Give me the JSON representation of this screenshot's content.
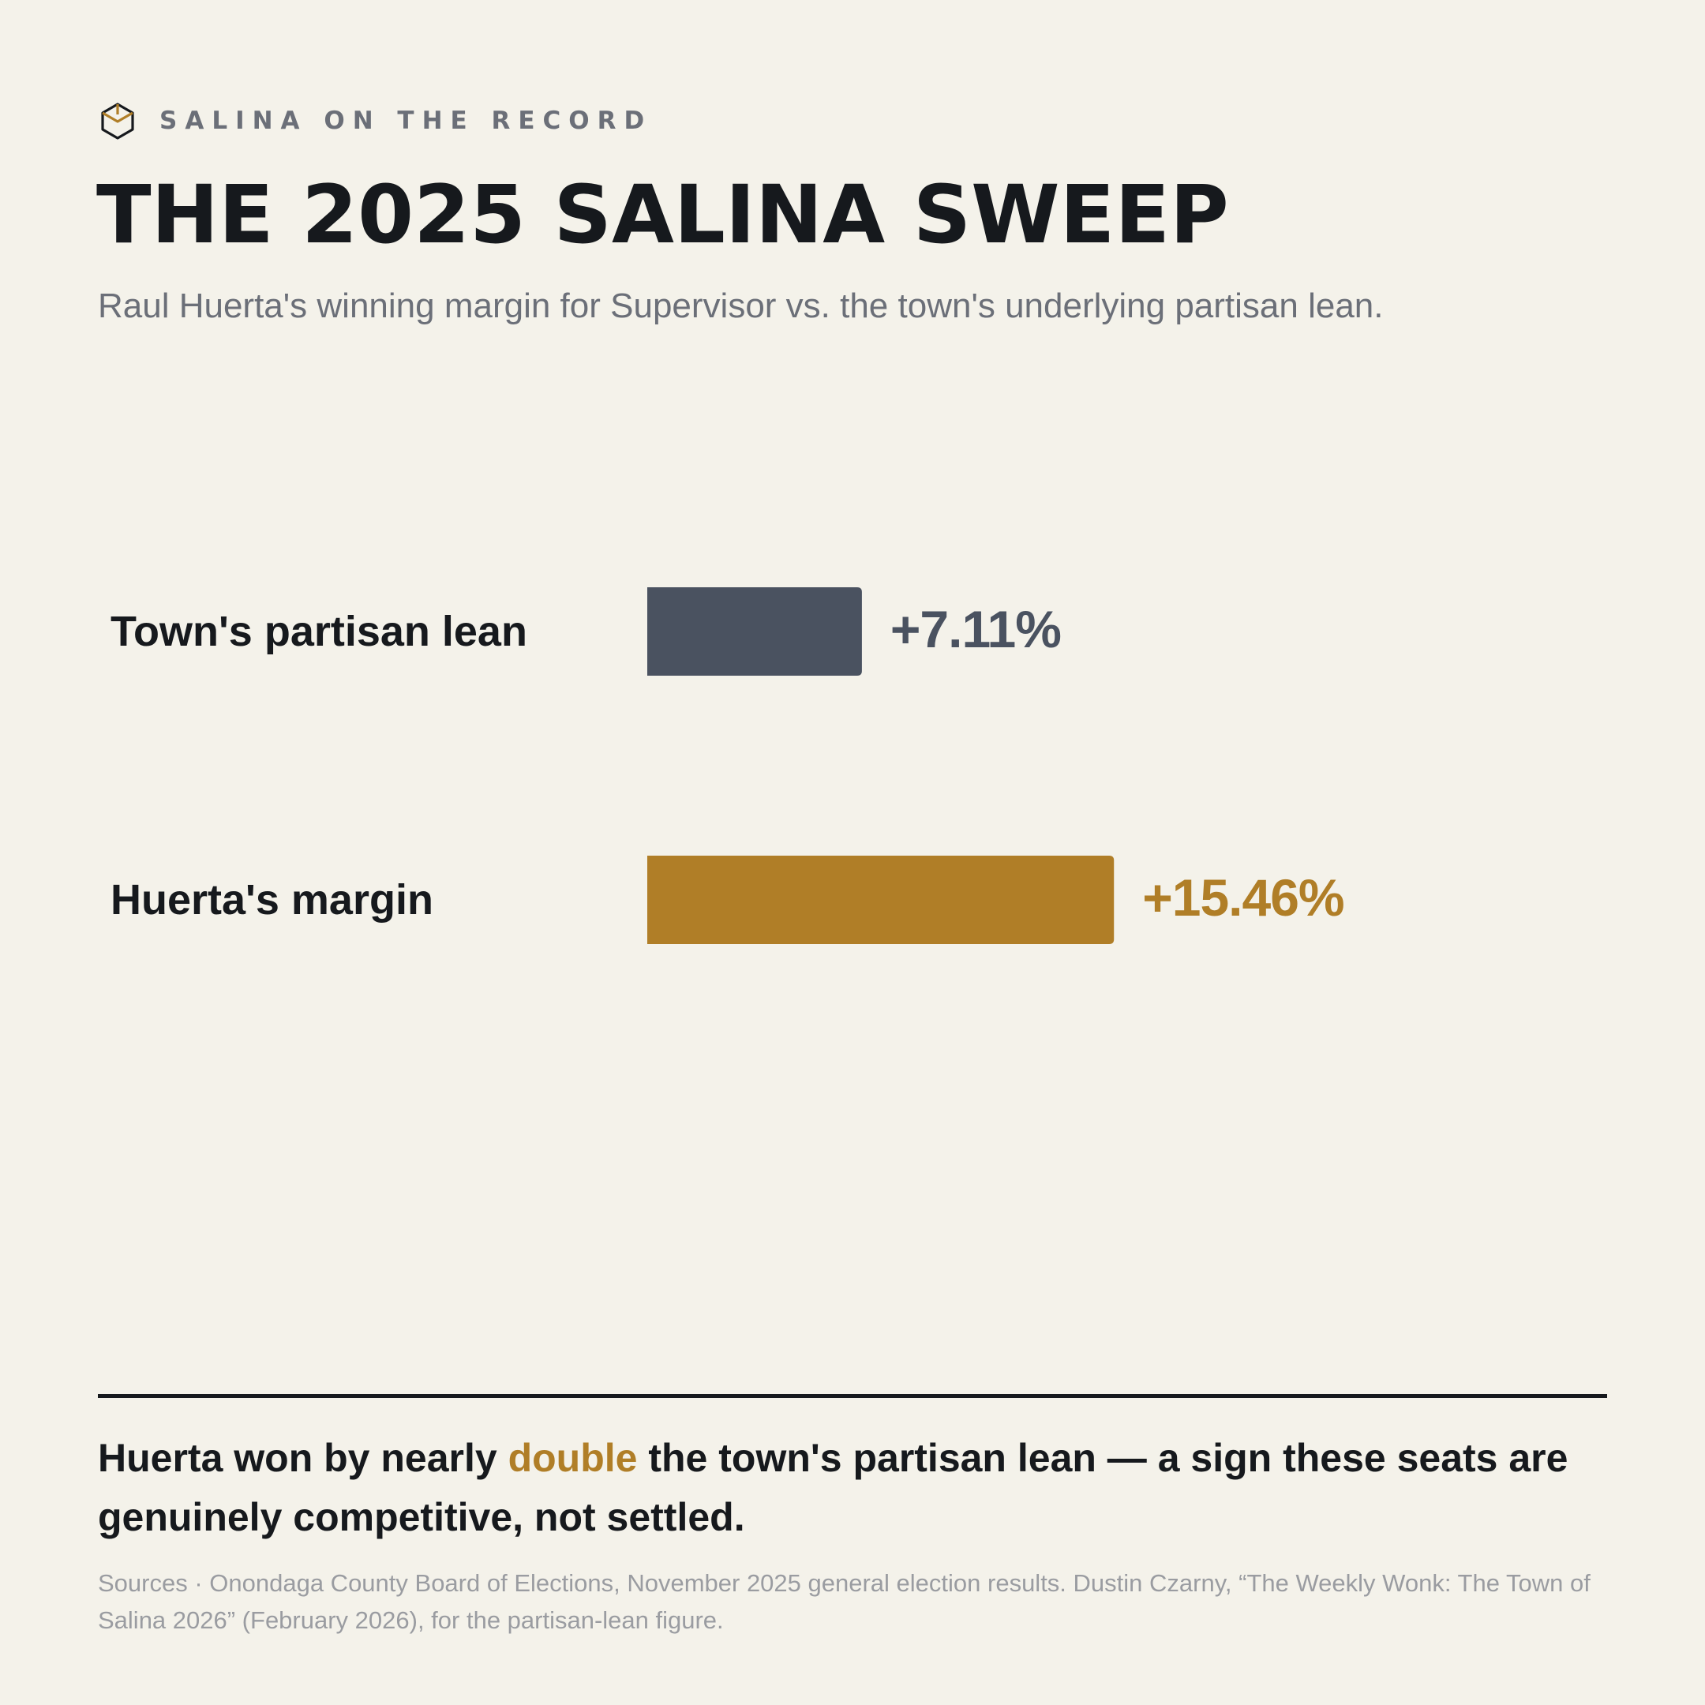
{
  "header": {
    "brand_icon": "ballot-box-icon",
    "brand_name": "SALINA ON THE RECORD",
    "title": "THE 2025 SALINA SWEEP",
    "subtitle": "Raul Huerta's winning margin for Supervisor vs. the town's underlying partisan lean."
  },
  "colors": {
    "background": "#f4f2ea",
    "ink": "#16191d",
    "muted": "#6b6f78",
    "lean_bar": "#4a5260",
    "margin_bar": "#b07e27"
  },
  "chart_data": {
    "type": "bar",
    "orientation": "horizontal",
    "categories": [
      "Town's partisan lean",
      "Huerta's margin"
    ],
    "values": [
      7.11,
      15.46
    ],
    "value_labels": [
      "+7.11%",
      "+15.46%"
    ],
    "bar_colors": [
      "#4a5260",
      "#b07e27"
    ],
    "xlim": [
      0,
      33
    ],
    "grid": false,
    "legend": "none"
  },
  "takeaway": {
    "before": "Huerta won by nearly ",
    "highlight": "double",
    "after": " the town's partisan lean — a sign these seats are genuinely competitive, not settled."
  },
  "sources": "Sources · Onondaga County Board of Elections, November 2025 general election results. Dustin Czarny, “The Weekly Wonk: The Town of Salina 2026” (February 2026), for the partisan-lean figure."
}
